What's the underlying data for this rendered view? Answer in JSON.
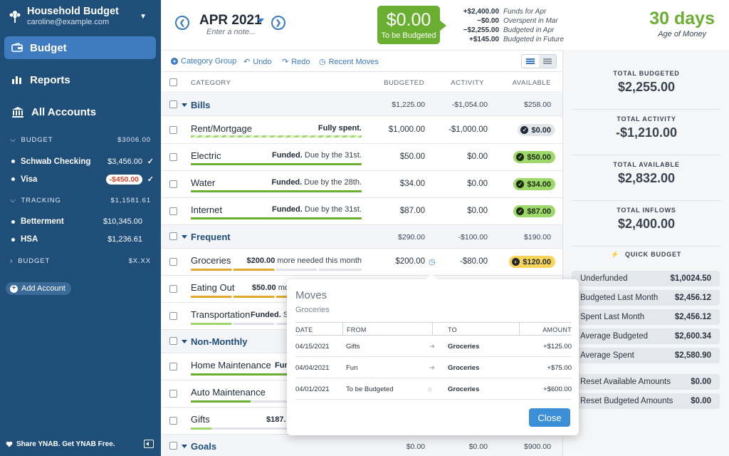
{
  "sidebar": {
    "title": "Household Budget",
    "email": "caroline@example.com",
    "nav": [
      {
        "label": "Budget",
        "active": true
      },
      {
        "label": "Reports"
      },
      {
        "label": "All Accounts"
      }
    ],
    "groups": [
      {
        "label": "BUDGET",
        "total": "$3006.00"
      },
      {
        "label": "TRACKING",
        "total": "$1,1581.61"
      },
      {
        "label": "BUDGET",
        "total": "$X.XX"
      }
    ],
    "accounts": [
      {
        "name": "Schwab Checking",
        "balance": "$3,456.00",
        "check": "✓"
      },
      {
        "name": "Visa",
        "balance": "-$450.00",
        "check": "✓"
      },
      {
        "name": "Betterment",
        "balance": "$10,345.00"
      },
      {
        "name": "HSA",
        "balance": "$1,236.61"
      }
    ],
    "add_account": "Add Account",
    "share": "Share YNAB. Get YNAB Free."
  },
  "top": {
    "month": "APR 2021",
    "note_placeholder": "Enter a note...",
    "tbb_amount": "$0.00",
    "tbb_label": "To be Budgeted",
    "summary": [
      {
        "amount": "+$2,400.00",
        "label": "Funds for Apr"
      },
      {
        "amount": "−$0.00",
        "label": "Overspent in Mar"
      },
      {
        "amount": "−$2,255.00",
        "label": "Budgeted in Apr"
      },
      {
        "amount": "+$145.00",
        "label": "Budgeted in Future"
      }
    ],
    "age": "30 days",
    "age_label": "Age of Money"
  },
  "toolbar": {
    "category_group": "Category Group",
    "undo": "Undo",
    "redo": "Redo",
    "recent_moves": "Recent Moves"
  },
  "table": {
    "headers": {
      "category": "CATEGORY",
      "budgeted": "BUDGETED",
      "activity": "ACTIVITY",
      "available": "AVAILABLE"
    },
    "groups": [
      {
        "name": "Bills",
        "budgeted": "$1,225.00",
        "activity": "-$1,054.00",
        "available": "$258.00"
      },
      {
        "name": "Frequent",
        "budgeted": "$290.00",
        "activity": "-$100.00",
        "available": "$190.00"
      },
      {
        "name": "Non-Monthly"
      },
      {
        "name": "Goals",
        "budgeted": "$0.00",
        "activity": "$0.00",
        "available": "$900.00"
      }
    ],
    "categories": [
      {
        "name": "Rent/Mortgage",
        "status_b": "Fully spent.",
        "status": "",
        "budgeted": "$1,000.00",
        "activity": "-$1,000.00",
        "available": "$0.00"
      },
      {
        "name": "Electric",
        "status_b": "Funded.",
        "status": " Due by the 31st.",
        "budgeted": "$50.00",
        "activity": "$0.00",
        "available": "$50.00"
      },
      {
        "name": "Water",
        "status_b": "Funded.",
        "status": " Due by the 28th.",
        "budgeted": "$34.00",
        "activity": "$0.00",
        "available": "$34.00"
      },
      {
        "name": "Internet",
        "status_b": "Funded.",
        "status": " Due by the 31st.",
        "budgeted": "$87.00",
        "activity": "$0.00",
        "available": "$87.00"
      },
      {
        "name": "Groceries",
        "status_b": "$200.00",
        "status": " more needed this month",
        "budgeted": "$200.00",
        "activity": "-$80.00",
        "available": "$120.00"
      },
      {
        "name": "Eating Out",
        "status_b": "$50.00",
        "status": " mor"
      },
      {
        "name": "Transportation",
        "status_b": "Funded.",
        "status": " Sp"
      },
      {
        "name": "Home Maintenance",
        "status_b": "Fun",
        "status": ""
      },
      {
        "name": "Auto Maintenance",
        "status_b": "",
        "status": ""
      },
      {
        "name": "Gifts",
        "status_b": "$187.",
        "status": ""
      }
    ]
  },
  "inspector": {
    "blocks": [
      {
        "label": "TOTAL BUDGETED",
        "value": "$2,255.00"
      },
      {
        "label": "TOTAL ACTIVITY",
        "value": "-$1,210.00"
      },
      {
        "label": "TOTAL AVAILABLE",
        "value": "$2,832.00"
      },
      {
        "label": "TOTAL INFLOWS",
        "value": "$2,400.00"
      }
    ],
    "quick_title": "QUICK BUDGET",
    "quick": [
      {
        "label": "Underfunded",
        "value": "$1,0024.50"
      },
      {
        "label": "Budgeted Last Month",
        "value": "$2,456.12"
      },
      {
        "label": "Spent Last Month",
        "value": "$2,456.12"
      },
      {
        "label": "Average Budgeted",
        "value": "$2,600.34"
      },
      {
        "label": "Average Spent",
        "value": "$2,580.90"
      },
      {
        "label": "Reset Available Amounts",
        "value": "$0.00"
      },
      {
        "label": "Reset Budgeted Amounts",
        "value": "$0.00"
      }
    ]
  },
  "popup": {
    "title": "Moves",
    "subtitle": "Groceries",
    "headers": {
      "date": "DATE",
      "from": "FROM",
      "to": "TO",
      "amount": "AMOUNT"
    },
    "rows": [
      {
        "date": "04/15/2021",
        "from": "Gifts",
        "to": "Groceries",
        "amount": "+$125.00"
      },
      {
        "date": "04/04/2021",
        "from": "Fun",
        "to": "Groceries",
        "amount": "+$75.00"
      },
      {
        "date": "04/01/2021",
        "from": "To be Budgeted",
        "to": "Groceries",
        "amount": "+$600.00"
      }
    ],
    "close": "Close"
  }
}
